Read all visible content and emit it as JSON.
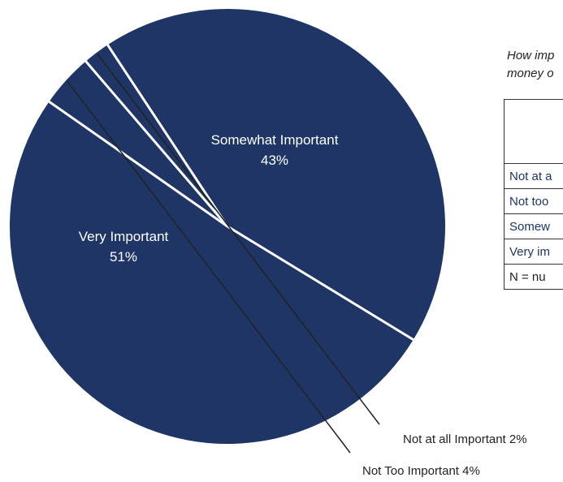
{
  "chart_data": {
    "type": "pie",
    "categories": [
      "Very Important",
      "Somewhat Important",
      "Not at all Important",
      "Not Too Important"
    ],
    "values": [
      51,
      43,
      2,
      4
    ],
    "slices": [
      {
        "label": "Very Important",
        "value_label": "51%",
        "value": 51
      },
      {
        "label": "Somewhat Important",
        "value_label": "43%",
        "value": 43
      },
      {
        "label": "Not at all Important",
        "value_label": "2%",
        "value": 2
      },
      {
        "label": "Not Too Important",
        "value_label": "4%",
        "value": 4
      }
    ],
    "callouts": [
      {
        "text": "Not at all Important  2%"
      },
      {
        "text": "Not Too Important  4%"
      }
    ],
    "colors": {
      "slice": "#1e3565",
      "divider": "#ffffff",
      "leader": "#222222"
    }
  },
  "side_panel": {
    "question_lines": [
      "How imp",
      "money o"
    ],
    "table_rows": [
      "Not at a",
      "Not too",
      "Somew",
      "Very im"
    ],
    "footnote": "N = nu"
  }
}
